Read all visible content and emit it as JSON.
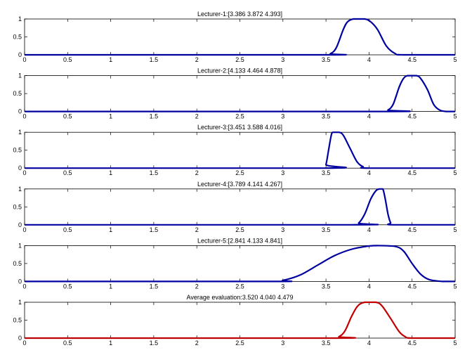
{
  "chart_data": [
    {
      "type": "line",
      "title": "Lecturer-1:[3.386 3.872 4.393]",
      "xlim": [
        0,
        5
      ],
      "ylim": [
        0,
        1
      ],
      "xticks": [
        "0",
        "0.5",
        "1",
        "1.5",
        "2",
        "2.5",
        "3",
        "3.5",
        "4",
        "4.5",
        "5"
      ],
      "yticks": [
        "0",
        "0.5",
        "1"
      ],
      "series": [
        {
          "color": "#0000a0",
          "points": [
            [
              0,
              0
            ],
            [
              3.45,
              0
            ],
            [
              3.55,
              0.03
            ],
            [
              3.62,
              0.2
            ],
            [
              3.7,
              0.7
            ],
            [
              3.75,
              0.92
            ],
            [
              3.82,
              1
            ],
            [
              3.95,
              1
            ],
            [
              4.02,
              0.92
            ],
            [
              4.1,
              0.7
            ],
            [
              4.2,
              0.25
            ],
            [
              4.3,
              0.04
            ],
            [
              4.4,
              0
            ],
            [
              5,
              0
            ]
          ]
        }
      ]
    },
    {
      "type": "line",
      "title": "Lecturer-2:[4.133 4.464 4.878]",
      "xlim": [
        0,
        5
      ],
      "ylim": [
        0,
        1
      ],
      "xticks": [
        "0",
        "0.5",
        "1",
        "1.5",
        "2",
        "2.5",
        "3",
        "3.5",
        "4",
        "4.5",
        "5"
      ],
      "yticks": [
        "0",
        "0.5",
        "1"
      ],
      "series": [
        {
          "color": "#0000a0",
          "points": [
            [
              0,
              0
            ],
            [
              4.15,
              0
            ],
            [
              4.22,
              0.04
            ],
            [
              4.28,
              0.2
            ],
            [
              4.35,
              0.68
            ],
            [
              4.4,
              0.92
            ],
            [
              4.45,
              1
            ],
            [
              4.55,
              1
            ],
            [
              4.6,
              0.92
            ],
            [
              4.68,
              0.6
            ],
            [
              4.75,
              0.2
            ],
            [
              4.82,
              0.04
            ],
            [
              4.9,
              0
            ],
            [
              5,
              0
            ]
          ]
        }
      ]
    },
    {
      "type": "line",
      "title": "Lecturer-3:[3.451 3.588 4.016]",
      "xlim": [
        0,
        5
      ],
      "ylim": [
        0,
        1
      ],
      "xticks": [
        "0",
        "0.5",
        "1",
        "1.5",
        "2",
        "2.5",
        "3",
        "3.5",
        "4",
        "4.5",
        "5"
      ],
      "yticks": [
        "0",
        "0.5",
        "1"
      ],
      "series": [
        {
          "color": "#0000a0",
          "points": [
            [
              0,
              0
            ],
            [
              3.47,
              0
            ],
            [
              3.5,
              0.1
            ],
            [
              3.53,
              0.5
            ],
            [
              3.56,
              0.9
            ],
            [
              3.58,
              1
            ],
            [
              3.65,
              1
            ],
            [
              3.7,
              0.92
            ],
            [
              3.78,
              0.55
            ],
            [
              3.86,
              0.18
            ],
            [
              3.93,
              0.04
            ],
            [
              4,
              0
            ],
            [
              5,
              0
            ]
          ]
        }
      ]
    },
    {
      "type": "line",
      "title": "Lecturer-4:[3.789 4.141 4.267]",
      "xlim": [
        0,
        5
      ],
      "ylim": [
        0,
        1
      ],
      "xticks": [
        "0",
        "0.5",
        "1",
        "1.5",
        "2",
        "2.5",
        "3",
        "3.5",
        "4",
        "4.5",
        "5"
      ],
      "yticks": [
        "0",
        "0.5",
        "1"
      ],
      "series": [
        {
          "color": "#0000a0",
          "points": [
            [
              0,
              0
            ],
            [
              3.8,
              0
            ],
            [
              3.88,
              0.05
            ],
            [
              3.95,
              0.3
            ],
            [
              4.02,
              0.72
            ],
            [
              4.08,
              0.95
            ],
            [
              4.12,
              1
            ],
            [
              4.16,
              1
            ],
            [
              4.19,
              0.7
            ],
            [
              4.22,
              0.3
            ],
            [
              4.25,
              0.06
            ],
            [
              4.28,
              0
            ],
            [
              5,
              0
            ]
          ]
        }
      ]
    },
    {
      "type": "line",
      "title": "Lecturer-5:[2.841 4.133 4.841]",
      "xlim": [
        0,
        5
      ],
      "ylim": [
        0,
        1
      ],
      "xticks": [
        "0",
        "0.5",
        "1",
        "1.5",
        "2",
        "2.5",
        "3",
        "3.5",
        "4",
        "4.5",
        "5"
      ],
      "yticks": [
        "0",
        "0.5",
        "1"
      ],
      "series": [
        {
          "color": "#0000a0",
          "points": [
            [
              0,
              0
            ],
            [
              2.85,
              0
            ],
            [
              3,
              0.03
            ],
            [
              3.2,
              0.18
            ],
            [
              3.4,
              0.45
            ],
            [
              3.6,
              0.72
            ],
            [
              3.8,
              0.9
            ],
            [
              4,
              0.99
            ],
            [
              4.1,
              1
            ],
            [
              4.3,
              0.98
            ],
            [
              4.4,
              0.85
            ],
            [
              4.5,
              0.5
            ],
            [
              4.6,
              0.2
            ],
            [
              4.7,
              0.05
            ],
            [
              4.85,
              0
            ],
            [
              5,
              0
            ]
          ]
        }
      ]
    },
    {
      "type": "line",
      "title": "Average evaluation:3.520 4.040 4.479",
      "xlim": [
        0,
        5
      ],
      "ylim": [
        0,
        1
      ],
      "xticks": [
        "0",
        "0.5",
        "1",
        "1.5",
        "2",
        "2.5",
        "3",
        "3.5",
        "4",
        "4.5",
        "5"
      ],
      "yticks": [
        "0",
        "0.5",
        "1"
      ],
      "series": [
        {
          "color": "#c00000",
          "points": [
            [
              0,
              0
            ],
            [
              3.55,
              0
            ],
            [
              3.65,
              0.04
            ],
            [
              3.72,
              0.2
            ],
            [
              3.8,
              0.62
            ],
            [
              3.87,
              0.9
            ],
            [
              3.95,
              1
            ],
            [
              4.08,
              1
            ],
            [
              4.15,
              0.9
            ],
            [
              4.25,
              0.55
            ],
            [
              4.35,
              0.18
            ],
            [
              4.42,
              0.04
            ],
            [
              4.5,
              0
            ],
            [
              5,
              0
            ]
          ]
        }
      ]
    }
  ]
}
